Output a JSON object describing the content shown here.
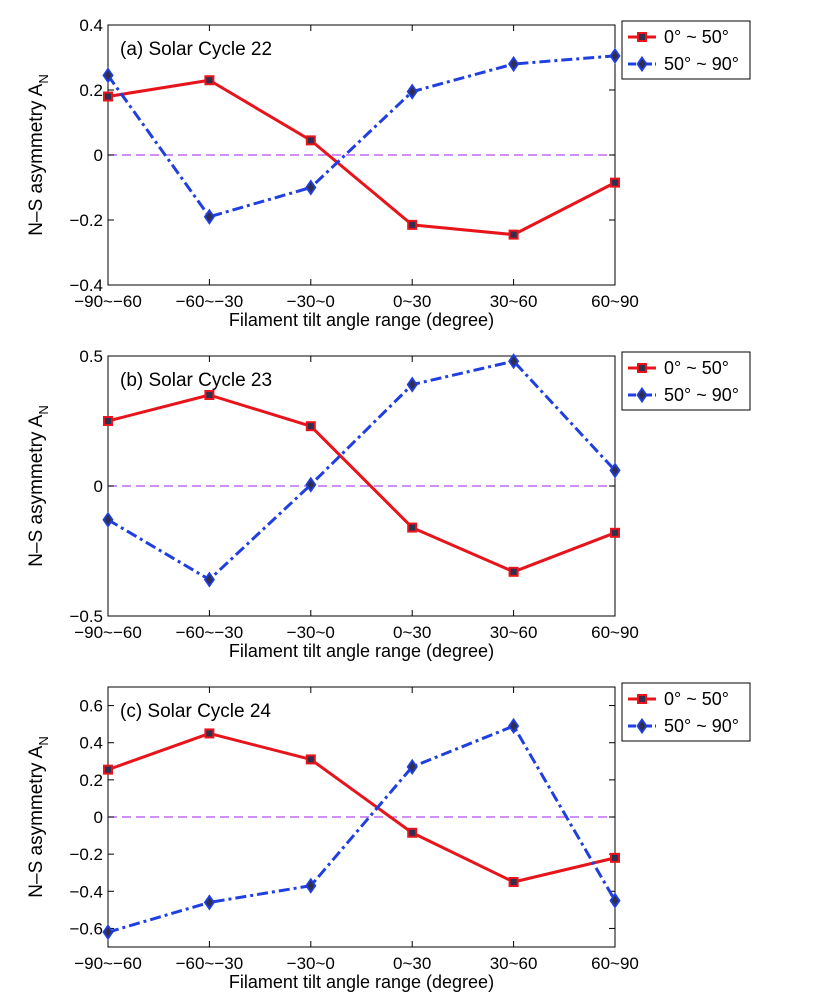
{
  "chart_data": [
    {
      "type": "line",
      "title": "(a) Solar Cycle 22",
      "xlabel": "Filament tilt angle range (degree)",
      "ylabel": "N–S asymmetry A",
      "ylabel_sub": "N",
      "categories": [
        "−90~−60",
        "−60~−30",
        "−30~0",
        "0~30",
        "30~60",
        "60~90"
      ],
      "ylim": [
        -0.4,
        0.4
      ],
      "yticks": [
        -0.4,
        -0.2,
        0,
        0.2,
        0.4
      ],
      "yticklabels": [
        "−0.4",
        "−0.2",
        "0",
        "0.2",
        "0.4"
      ],
      "zero_line": true,
      "legend_position": "right-outside-top",
      "series": [
        {
          "name": "0° ~ 50°",
          "color": "#e8141b",
          "marker": "square",
          "style": "solid",
          "values": [
            0.18,
            0.23,
            0.045,
            -0.215,
            -0.245,
            -0.085
          ]
        },
        {
          "name": "50° ~ 90°",
          "color": "#1f3fe0",
          "marker": "diamond",
          "style": "dashdot",
          "values": [
            0.245,
            -0.19,
            -0.1,
            0.195,
            0.28,
            0.305
          ]
        }
      ]
    },
    {
      "type": "line",
      "title": "(b) Solar Cycle 23",
      "xlabel": "Filament tilt angle range (degree)",
      "ylabel": "N–S asymmetry A",
      "ylabel_sub": "N",
      "categories": [
        "−90~−60",
        "−60~−30",
        "−30~0",
        "0~30",
        "30~60",
        "60~90"
      ],
      "ylim": [
        -0.5,
        0.5
      ],
      "yticks": [
        -0.5,
        0,
        0.5
      ],
      "yticklabels": [
        "−0.5",
        "0",
        "0.5"
      ],
      "zero_line": true,
      "legend_position": "right-outside-top",
      "series": [
        {
          "name": "0° ~ 50°",
          "color": "#e8141b",
          "marker": "square",
          "style": "solid",
          "values": [
            0.25,
            0.35,
            0.23,
            -0.16,
            -0.33,
            -0.18
          ]
        },
        {
          "name": "50° ~ 90°",
          "color": "#1f3fe0",
          "marker": "diamond",
          "style": "dashdot",
          "values": [
            -0.13,
            -0.36,
            0.005,
            0.39,
            0.48,
            0.06
          ]
        }
      ]
    },
    {
      "type": "line",
      "title": "(c) Solar Cycle 24",
      "xlabel": "Filament tilt angle range (degree)",
      "ylabel": "N–S asymmetry A",
      "ylabel_sub": "N",
      "categories": [
        "−90~−60",
        "−60~−30",
        "−30~0",
        "0~30",
        "30~60",
        "60~90"
      ],
      "ylim": [
        -0.7,
        0.7
      ],
      "yticks": [
        -0.6,
        -0.4,
        -0.2,
        0,
        0.2,
        0.4,
        0.6
      ],
      "yticklabels": [
        "−0.6",
        "−0.4",
        "−0.2",
        "0",
        "0.2",
        "0.4",
        "0.6"
      ],
      "zero_line": true,
      "legend_position": "right-outside-top",
      "series": [
        {
          "name": "0° ~ 50°",
          "color": "#e8141b",
          "marker": "square",
          "style": "solid",
          "values": [
            0.255,
            0.45,
            0.31,
            -0.085,
            -0.35,
            -0.22
          ]
        },
        {
          "name": "50° ~ 90°",
          "color": "#1f3fe0",
          "marker": "diamond",
          "style": "dashdot",
          "values": [
            -0.62,
            -0.46,
            -0.37,
            0.27,
            0.49,
            -0.45
          ]
        }
      ]
    }
  ],
  "colors": {
    "zero_line": "#b44cf0",
    "marker_fill": "#2f2f4f",
    "axis": "#000000"
  }
}
